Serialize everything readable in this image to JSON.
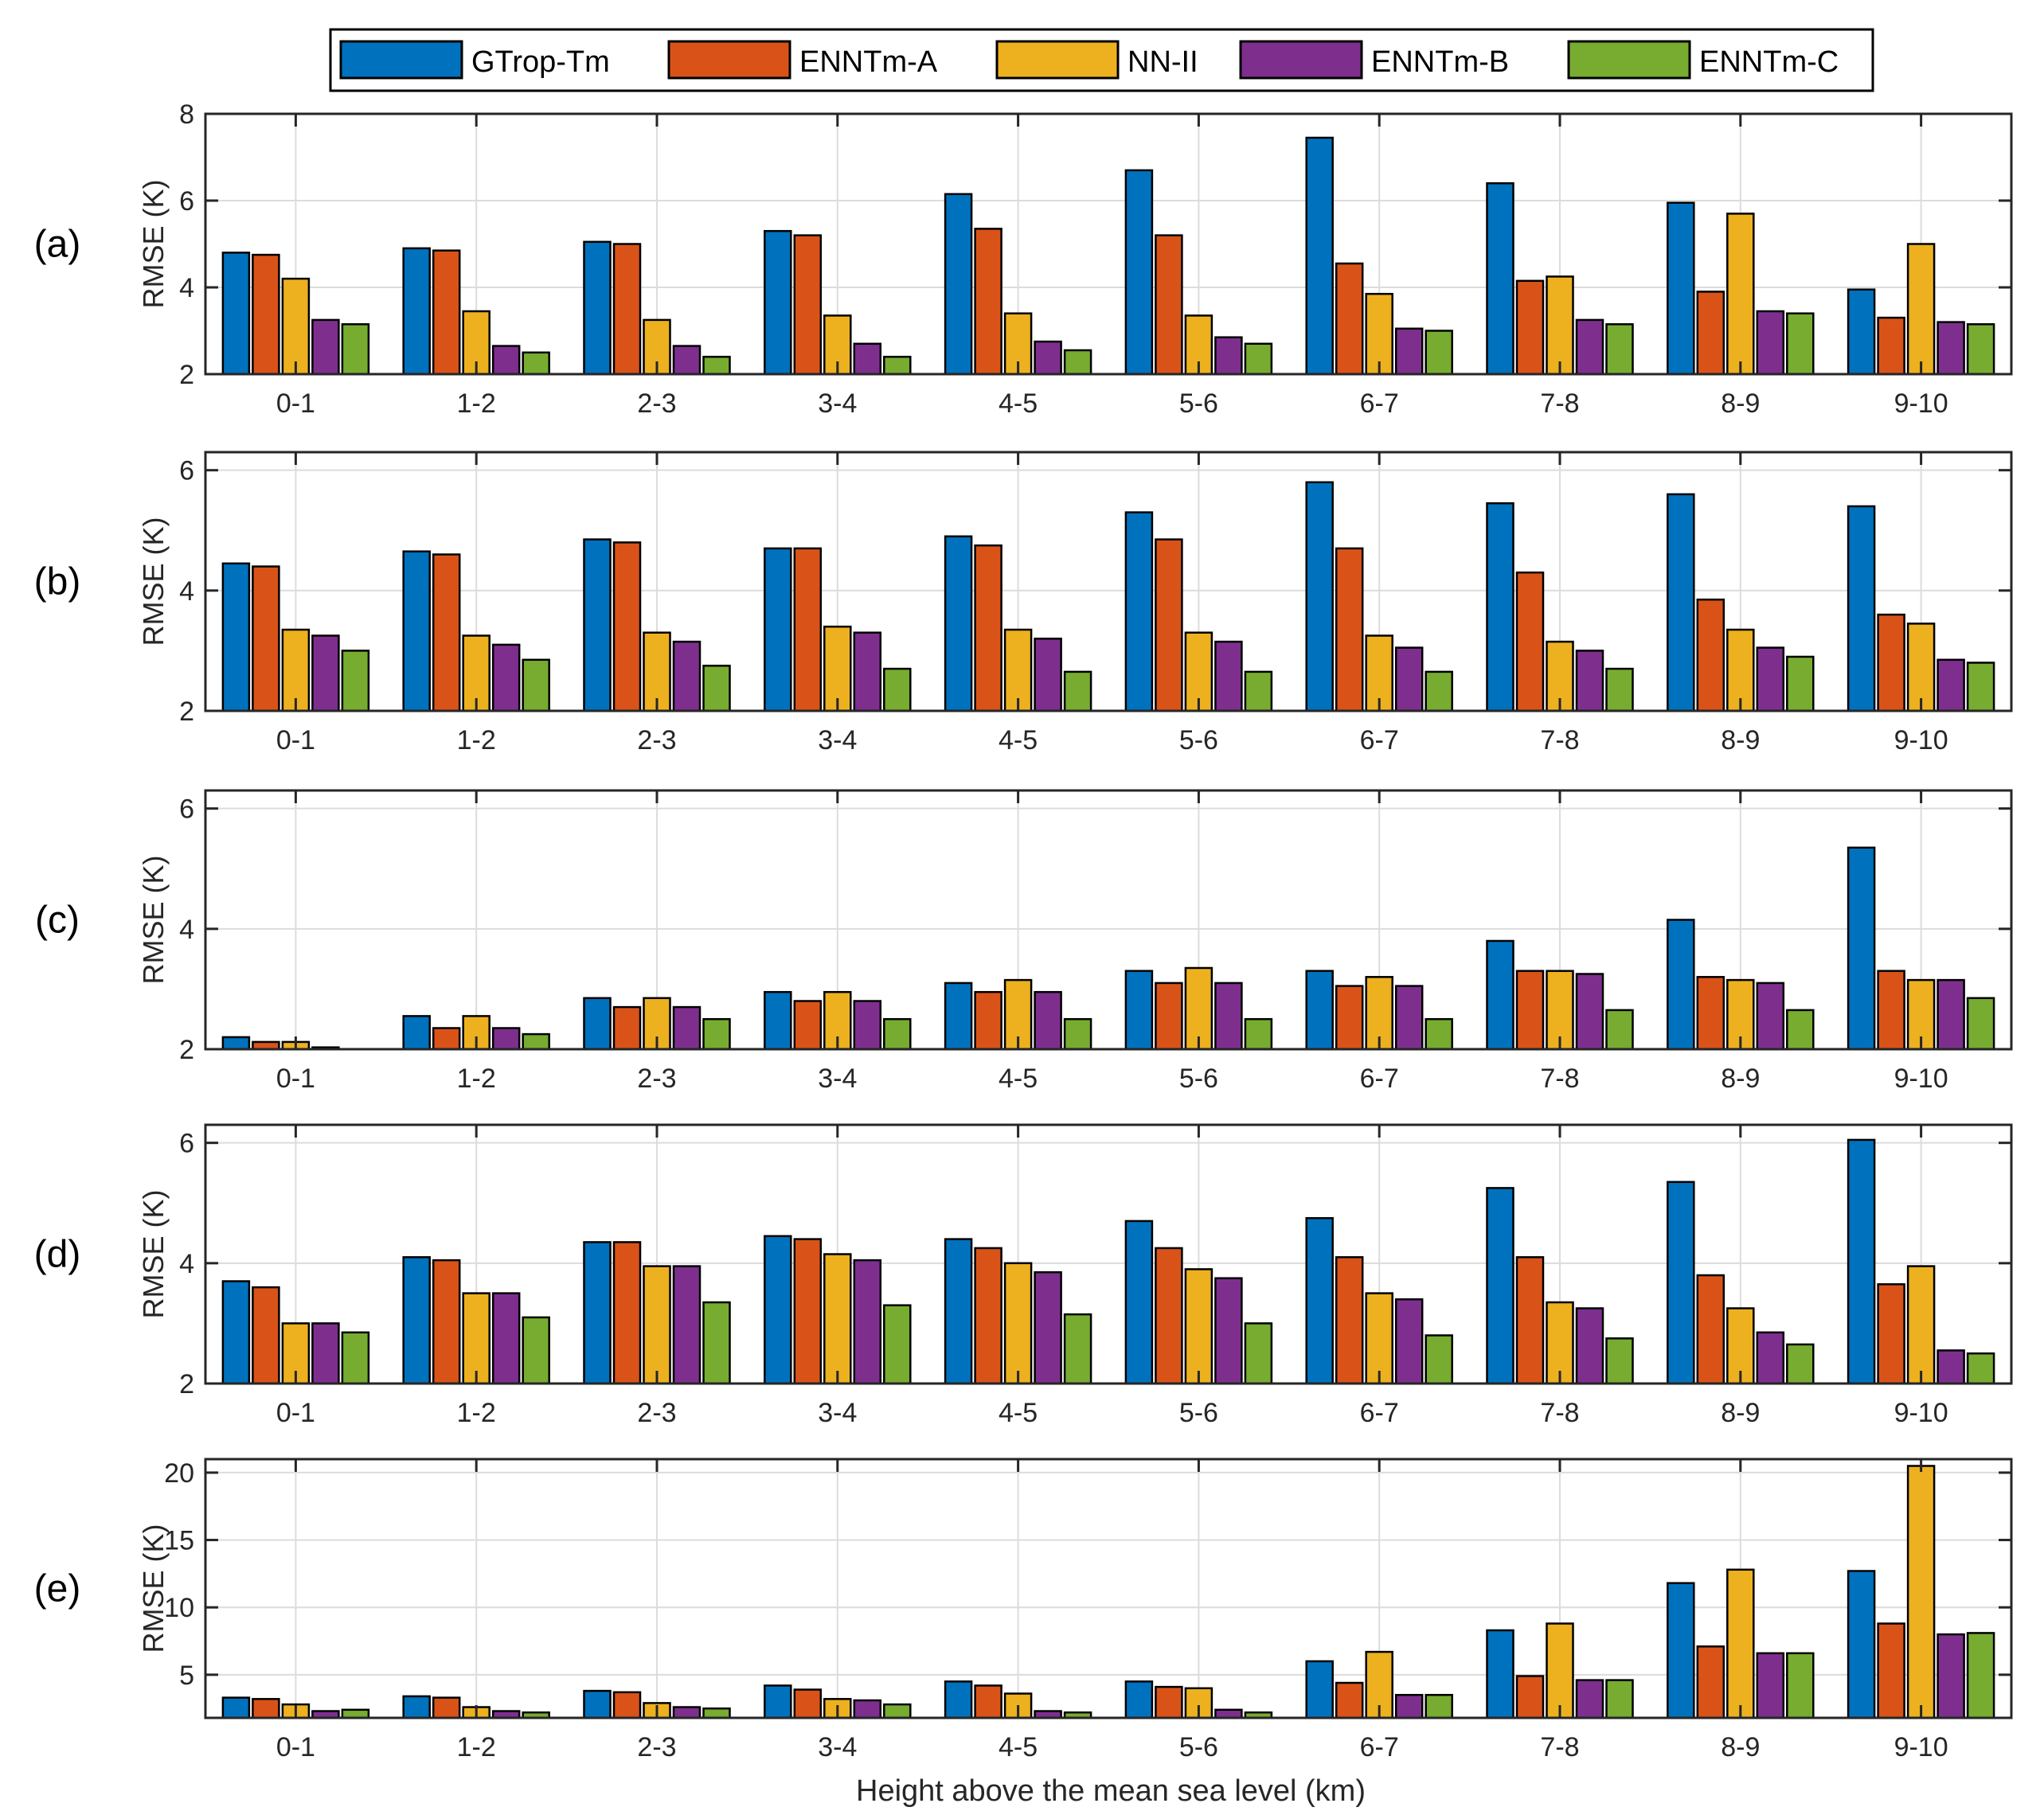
{
  "legend": [
    {
      "name": "GTrop-Tm",
      "color": "#0072BD"
    },
    {
      "name": "ENNTm-A",
      "color": "#D95319"
    },
    {
      "name": "NN-II",
      "color": "#EDB120"
    },
    {
      "name": "ENNTm-B",
      "color": "#7E2F8E"
    },
    {
      "name": "ENNTm-C",
      "color": "#77AC30"
    }
  ],
  "xlabel": "Height above the mean sea level (km)",
  "chart_data": [
    {
      "type": "bar",
      "panel_label": "(a)",
      "ylabel": "RMSE (K)",
      "ylim": [
        2,
        8
      ],
      "yticks": [
        2,
        4,
        6,
        8
      ],
      "categories": [
        "0-1",
        "1-2",
        "2-3",
        "3-4",
        "4-5",
        "5-6",
        "6-7",
        "7-8",
        "8-9",
        "9-10"
      ],
      "series": [
        {
          "name": "GTrop-Tm",
          "values": [
            4.8,
            4.9,
            5.05,
            5.3,
            6.15,
            6.7,
            7.45,
            6.4,
            5.95,
            3.95
          ]
        },
        {
          "name": "ENNTm-A",
          "values": [
            4.75,
            4.85,
            5.0,
            5.2,
            5.35,
            5.2,
            4.55,
            4.15,
            3.9,
            3.3
          ]
        },
        {
          "name": "NN-II",
          "values": [
            4.2,
            3.45,
            3.25,
            3.35,
            3.4,
            3.35,
            3.85,
            4.25,
            5.7,
            5.0
          ]
        },
        {
          "name": "ENNTm-B",
          "values": [
            3.25,
            2.65,
            2.65,
            2.7,
            2.75,
            2.85,
            3.05,
            3.25,
            3.45,
            3.2
          ]
        },
        {
          "name": "ENNTm-C",
          "values": [
            3.15,
            2.5,
            2.4,
            2.4,
            2.55,
            2.7,
            3.0,
            3.15,
            3.4,
            3.15
          ]
        }
      ]
    },
    {
      "type": "bar",
      "panel_label": "(b)",
      "ylabel": "RMSE (K)",
      "ylim": [
        2,
        6.3
      ],
      "yticks": [
        2,
        4,
        6
      ],
      "categories": [
        "0-1",
        "1-2",
        "2-3",
        "3-4",
        "4-5",
        "5-6",
        "6-7",
        "7-8",
        "8-9",
        "9-10"
      ],
      "series": [
        {
          "name": "GTrop-Tm",
          "values": [
            4.45,
            4.65,
            4.85,
            4.7,
            4.9,
            5.3,
            5.8,
            5.45,
            5.6,
            5.4
          ]
        },
        {
          "name": "ENNTm-A",
          "values": [
            4.4,
            4.6,
            4.8,
            4.7,
            4.75,
            4.85,
            4.7,
            4.3,
            3.85,
            3.6
          ]
        },
        {
          "name": "NN-II",
          "values": [
            3.35,
            3.25,
            3.3,
            3.4,
            3.35,
            3.3,
            3.25,
            3.15,
            3.35,
            3.45
          ]
        },
        {
          "name": "ENNTm-B",
          "values": [
            3.25,
            3.1,
            3.15,
            3.3,
            3.2,
            3.15,
            3.05,
            3.0,
            3.05,
            2.85
          ]
        },
        {
          "name": "ENNTm-C",
          "values": [
            3.0,
            2.85,
            2.75,
            2.7,
            2.65,
            2.65,
            2.65,
            2.7,
            2.9,
            2.8
          ]
        }
      ]
    },
    {
      "type": "bar",
      "panel_label": "(c)",
      "ylabel": "RMSE (K)",
      "ylim": [
        2,
        6.3
      ],
      "yticks": [
        2,
        4,
        6
      ],
      "categories": [
        "0-1",
        "1-2",
        "2-3",
        "3-4",
        "4-5",
        "5-6",
        "6-7",
        "7-8",
        "8-9",
        "9-10"
      ],
      "series": [
        {
          "name": "GTrop-Tm",
          "values": [
            2.2,
            2.55,
            2.85,
            2.95,
            3.1,
            3.3,
            3.3,
            3.8,
            4.15,
            5.35
          ]
        },
        {
          "name": "ENNTm-A",
          "values": [
            2.12,
            2.35,
            2.7,
            2.8,
            2.95,
            3.1,
            3.05,
            3.3,
            3.2,
            3.3
          ]
        },
        {
          "name": "NN-II",
          "values": [
            2.12,
            2.55,
            2.85,
            2.95,
            3.15,
            3.35,
            3.2,
            3.3,
            3.15,
            3.15
          ]
        },
        {
          "name": "ENNTm-B",
          "values": [
            2.03,
            2.35,
            2.7,
            2.8,
            2.95,
            3.1,
            3.05,
            3.25,
            3.1,
            3.15
          ]
        },
        {
          "name": "ENNTm-C",
          "values": [
            2.0,
            2.25,
            2.5,
            2.5,
            2.5,
            2.5,
            2.5,
            2.65,
            2.65,
            2.85
          ]
        }
      ]
    },
    {
      "type": "bar",
      "panel_label": "(d)",
      "ylabel": "RMSE (K)",
      "ylim": [
        2,
        6.3
      ],
      "yticks": [
        2,
        4,
        6
      ],
      "categories": [
        "0-1",
        "1-2",
        "2-3",
        "3-4",
        "4-5",
        "5-6",
        "6-7",
        "7-8",
        "8-9",
        "9-10"
      ],
      "series": [
        {
          "name": "GTrop-Tm",
          "values": [
            3.7,
            4.1,
            4.35,
            4.45,
            4.4,
            4.7,
            4.75,
            5.25,
            5.35,
            6.05
          ]
        },
        {
          "name": "ENNTm-A",
          "values": [
            3.6,
            4.05,
            4.35,
            4.4,
            4.25,
            4.25,
            4.1,
            4.1,
            3.8,
            3.65
          ]
        },
        {
          "name": "NN-II",
          "values": [
            3.0,
            3.5,
            3.95,
            4.15,
            4.0,
            3.9,
            3.5,
            3.35,
            3.25,
            3.95
          ]
        },
        {
          "name": "ENNTm-B",
          "values": [
            3.0,
            3.5,
            3.95,
            4.05,
            3.85,
            3.75,
            3.4,
            3.25,
            2.85,
            2.55
          ]
        },
        {
          "name": "ENNTm-C",
          "values": [
            2.85,
            3.1,
            3.35,
            3.3,
            3.15,
            3.0,
            2.8,
            2.75,
            2.65,
            2.5
          ]
        }
      ]
    },
    {
      "type": "bar",
      "panel_label": "(e)",
      "ylabel": "RMSE (K)",
      "ylim": [
        1.8,
        21
      ],
      "yticks": [
        5,
        10,
        15,
        20
      ],
      "categories": [
        "0-1",
        "1-2",
        "2-3",
        "3-4",
        "4-5",
        "5-6",
        "6-7",
        "7-8",
        "8-9",
        "9-10"
      ],
      "series": [
        {
          "name": "GTrop-Tm",
          "values": [
            3.3,
            3.4,
            3.8,
            4.2,
            4.5,
            4.5,
            6.0,
            8.3,
            11.8,
            12.7
          ]
        },
        {
          "name": "ENNTm-A",
          "values": [
            3.2,
            3.3,
            3.7,
            3.9,
            4.2,
            4.1,
            4.4,
            4.9,
            7.1,
            8.8
          ]
        },
        {
          "name": "NN-II",
          "values": [
            2.8,
            2.6,
            2.9,
            3.2,
            3.6,
            4.0,
            6.7,
            8.8,
            12.8,
            20.5
          ]
        },
        {
          "name": "ENNTm-B",
          "values": [
            2.3,
            2.3,
            2.6,
            3.1,
            2.3,
            2.4,
            3.5,
            4.6,
            6.6,
            8.0
          ]
        },
        {
          "name": "ENNTm-C",
          "values": [
            2.4,
            2.2,
            2.5,
            2.8,
            2.2,
            2.2,
            3.5,
            4.6,
            6.6,
            8.1
          ]
        }
      ]
    }
  ]
}
